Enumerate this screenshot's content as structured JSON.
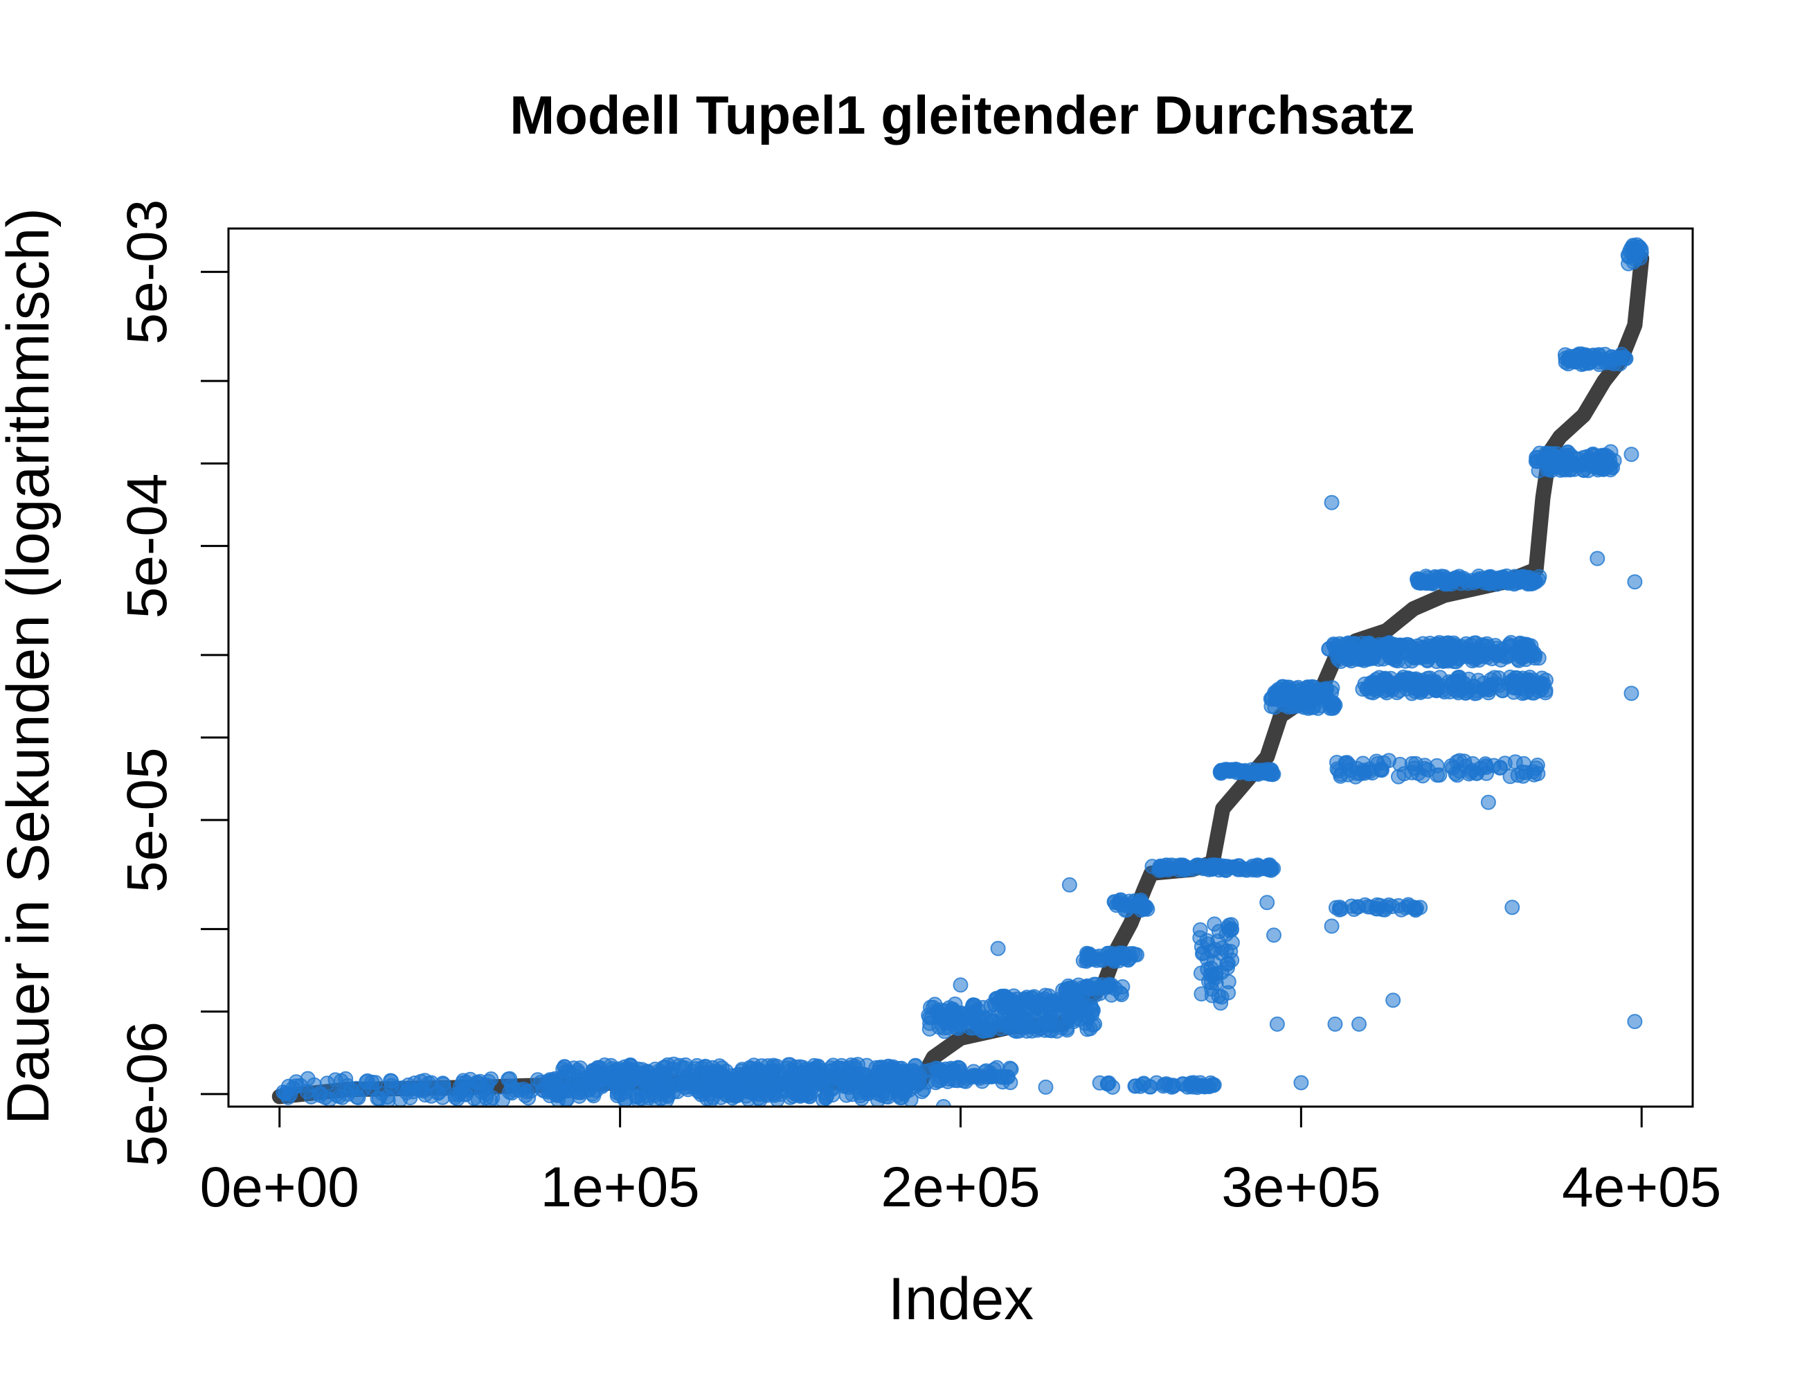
{
  "chart_data": {
    "type": "scatter",
    "title": "Modell Tupel1 gleitender Durchsatz",
    "xlabel": "Index",
    "ylabel": "Dauer in Sekunden (logarithmisch)",
    "y_scale": "log",
    "xlim": [
      -15000,
      415000
    ],
    "ylim": [
      4.5e-06,
      0.0072
    ],
    "x_ticks": [
      {
        "value": 0,
        "label": "0e+00"
      },
      {
        "value": 100000,
        "label": "1e+05"
      },
      {
        "value": 200000,
        "label": "2e+05"
      },
      {
        "value": 300000,
        "label": "3e+05"
      },
      {
        "value": 400000,
        "label": "4e+05"
      }
    ],
    "y_ticks_labeled": [
      {
        "value": 5e-06,
        "label": "5e-06"
      },
      {
        "value": 5e-05,
        "label": "5e-05"
      },
      {
        "value": 0.0005,
        "label": "5e-04"
      },
      {
        "value": 0.005,
        "label": "5e-03"
      }
    ],
    "y_ticks_minor": [
      1e-05,
      2e-05,
      0.0001,
      0.0002,
      0.001,
      0.002
    ],
    "grid": false,
    "legend": "none",
    "colors": {
      "smoothed_line": "#3f3f3f",
      "points": "#1f77cf"
    },
    "series": [
      {
        "type": "line",
        "points": [
          [
            0,
            4.9e-06
          ],
          [
            20000,
            5.2e-06
          ],
          [
            60000,
            5.3e-06
          ],
          [
            100000,
            5.5e-06
          ],
          [
            150000,
            5.5e-06
          ],
          [
            188000,
            5.5e-06
          ],
          [
            192000,
            6.8e-06
          ],
          [
            200000,
            8e-06
          ],
          [
            215000,
            8.8e-06
          ],
          [
            230000,
            9e-06
          ],
          [
            235000,
            1.05e-05
          ],
          [
            242000,
            1.25e-05
          ],
          [
            246000,
            1.7e-05
          ],
          [
            250000,
            2.1e-05
          ],
          [
            254000,
            2.8e-05
          ],
          [
            256000,
            3.2e-05
          ],
          [
            268000,
            3.3e-05
          ],
          [
            274000,
            3.5e-05
          ],
          [
            277000,
            5.5e-05
          ],
          [
            282000,
            6.5e-05
          ],
          [
            290000,
            8.5e-05
          ],
          [
            294000,
            0.00012
          ],
          [
            300000,
            0.000135
          ],
          [
            306000,
            0.00015
          ],
          [
            310000,
            0.000195
          ],
          [
            316000,
            0.000225
          ],
          [
            325000,
            0.000245
          ],
          [
            333000,
            0.000295
          ],
          [
            342000,
            0.00033
          ],
          [
            360000,
            0.00037
          ],
          [
            369000,
            0.00041
          ],
          [
            371000,
            0.00075
          ],
          [
            373000,
            0.0011
          ],
          [
            376000,
            0.00125
          ],
          [
            383000,
            0.0015
          ],
          [
            389000,
            0.002
          ],
          [
            394000,
            0.0024
          ],
          [
            398000,
            0.0032
          ],
          [
            400000,
            0.0056
          ]
        ]
      },
      {
        "type": "points",
        "clusters": [
          {
            "x0": 0,
            "x1": 190000,
            "y": 5.2e-06,
            "spread": 0.04,
            "n": 300
          },
          {
            "x0": 80000,
            "x1": 190000,
            "y": 5.6e-06,
            "spread": 0.06,
            "n": 260
          },
          {
            "x0": 90000,
            "x1": 185000,
            "y": 6e-06,
            "spread": 0.03,
            "n": 160
          },
          {
            "x0": 190000,
            "x1": 215000,
            "y": 5.9e-06,
            "spread": 0.03,
            "n": 60
          },
          {
            "x0": 190000,
            "x1": 240000,
            "y": 9.5e-06,
            "spread": 0.05,
            "n": 180
          },
          {
            "x0": 210000,
            "x1": 236000,
            "y": 1.1e-05,
            "spread": 0.02,
            "n": 60
          },
          {
            "x0": 230000,
            "x1": 248000,
            "y": 1.2e-05,
            "spread": 0.02,
            "n": 40
          },
          {
            "x0": 236000,
            "x1": 252000,
            "y": 1.58e-05,
            "spread": 0.015,
            "n": 40
          },
          {
            "x0": 245000,
            "x1": 255000,
            "y": 2.45e-05,
            "spread": 0.02,
            "n": 30
          },
          {
            "x0": 256000,
            "x1": 292000,
            "y": 3.35e-05,
            "spread": 0.01,
            "n": 90
          },
          {
            "x0": 240000,
            "x1": 275000,
            "y": 5.4e-06,
            "spread": 0.01,
            "n": 40
          },
          {
            "x0": 270000,
            "x1": 280000,
            "y": 1.5e-05,
            "spread": 0.15,
            "n": 50
          },
          {
            "x0": 276000,
            "x1": 292000,
            "y": 7.5e-05,
            "spread": 0.01,
            "n": 50
          },
          {
            "x0": 291000,
            "x1": 310000,
            "y": 0.00014,
            "spread": 0.04,
            "n": 110
          },
          {
            "x0": 308000,
            "x1": 370000,
            "y": 0.000205,
            "spread": 0.035,
            "n": 240
          },
          {
            "x0": 318000,
            "x1": 372000,
            "y": 0.000155,
            "spread": 0.03,
            "n": 180
          },
          {
            "x0": 310000,
            "x1": 370000,
            "y": 7.7e-05,
            "spread": 0.03,
            "n": 80
          },
          {
            "x0": 334000,
            "x1": 370000,
            "y": 0.000375,
            "spread": 0.015,
            "n": 120
          },
          {
            "x0": 369000,
            "x1": 392000,
            "y": 0.00102,
            "spread": 0.035,
            "n": 100
          },
          {
            "x0": 377000,
            "x1": 396000,
            "y": 0.0024,
            "spread": 0.02,
            "n": 60
          },
          {
            "x0": 396000,
            "x1": 400000,
            "y": 0.0058,
            "spread": 0.04,
            "n": 20
          },
          {
            "x0": 309000,
            "x1": 335000,
            "y": 2.4e-05,
            "spread": 0.01,
            "n": 30
          }
        ],
        "outliers": [
          [
            309000,
            0.00072
          ],
          [
            309000,
            2.05e-05
          ],
          [
            300000,
            5.5e-06
          ],
          [
            398000,
            0.00037
          ],
          [
            398000,
            9.2e-06
          ],
          [
            397000,
            0.000145
          ],
          [
            397000,
            0.00108
          ],
          [
            387000,
            0.00045
          ],
          [
            365000,
            0.000145
          ],
          [
            362000,
            2.4e-05
          ],
          [
            355000,
            5.8e-05
          ],
          [
            327000,
            1.1e-05
          ],
          [
            317000,
            9e-06
          ],
          [
            310000,
            9e-06
          ],
          [
            290000,
            2.5e-05
          ],
          [
            292000,
            1.9e-05
          ],
          [
            293000,
            9e-06
          ],
          [
            232000,
            2.9e-05
          ],
          [
            211000,
            1.7e-05
          ],
          [
            200000,
            1.25e-05
          ],
          [
            195000,
            4.5e-06
          ],
          [
            225000,
            5.3e-06
          ]
        ]
      }
    ]
  }
}
